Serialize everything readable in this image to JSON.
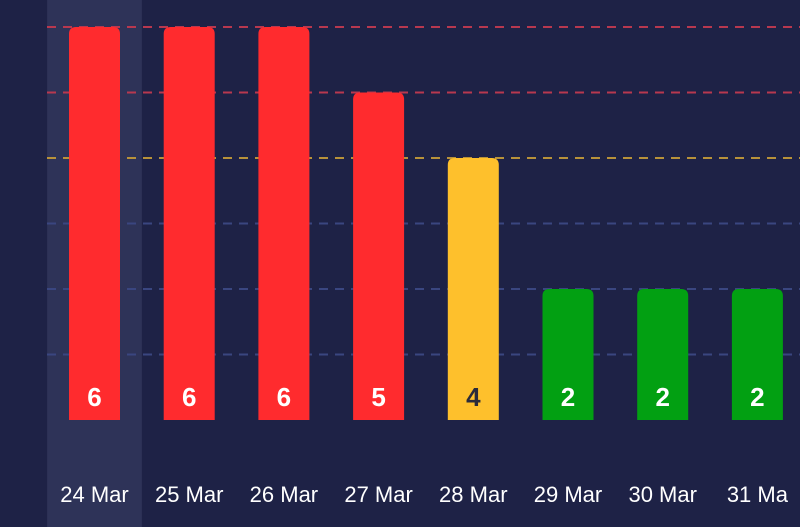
{
  "chart_data": {
    "type": "bar",
    "categories": [
      "24 Mar",
      "25 Mar",
      "26 Mar",
      "27 Mar",
      "28 Mar",
      "29 Mar",
      "30 Mar",
      "31 Ma"
    ],
    "values": [
      6,
      6,
      6,
      5,
      4,
      2,
      2,
      2
    ],
    "value_labels": [
      "6",
      "6",
      "6",
      "5",
      "4",
      "2",
      "2",
      "2"
    ],
    "ylim": [
      1,
      6
    ],
    "title": "",
    "xlabel": "",
    "ylabel": "",
    "selected_index": 0,
    "gridlines": [
      {
        "value": 6,
        "color": "#b8384f"
      },
      {
        "value": 5,
        "color": "#b8384f"
      },
      {
        "value": 4,
        "color": "#b8923a"
      },
      {
        "value": 3,
        "color": "#3a4680"
      },
      {
        "value": 2,
        "color": "#3a4680"
      },
      {
        "value": 1,
        "color": "#3a4680"
      }
    ],
    "colors": {
      "high": "#ff2b2e",
      "medium": "#fec02c",
      "low": "#02a012",
      "background": "#1e2246",
      "selected_band": "#2e3358",
      "label_light": "#ffffff",
      "label_dark": "#2b2b3b"
    }
  }
}
